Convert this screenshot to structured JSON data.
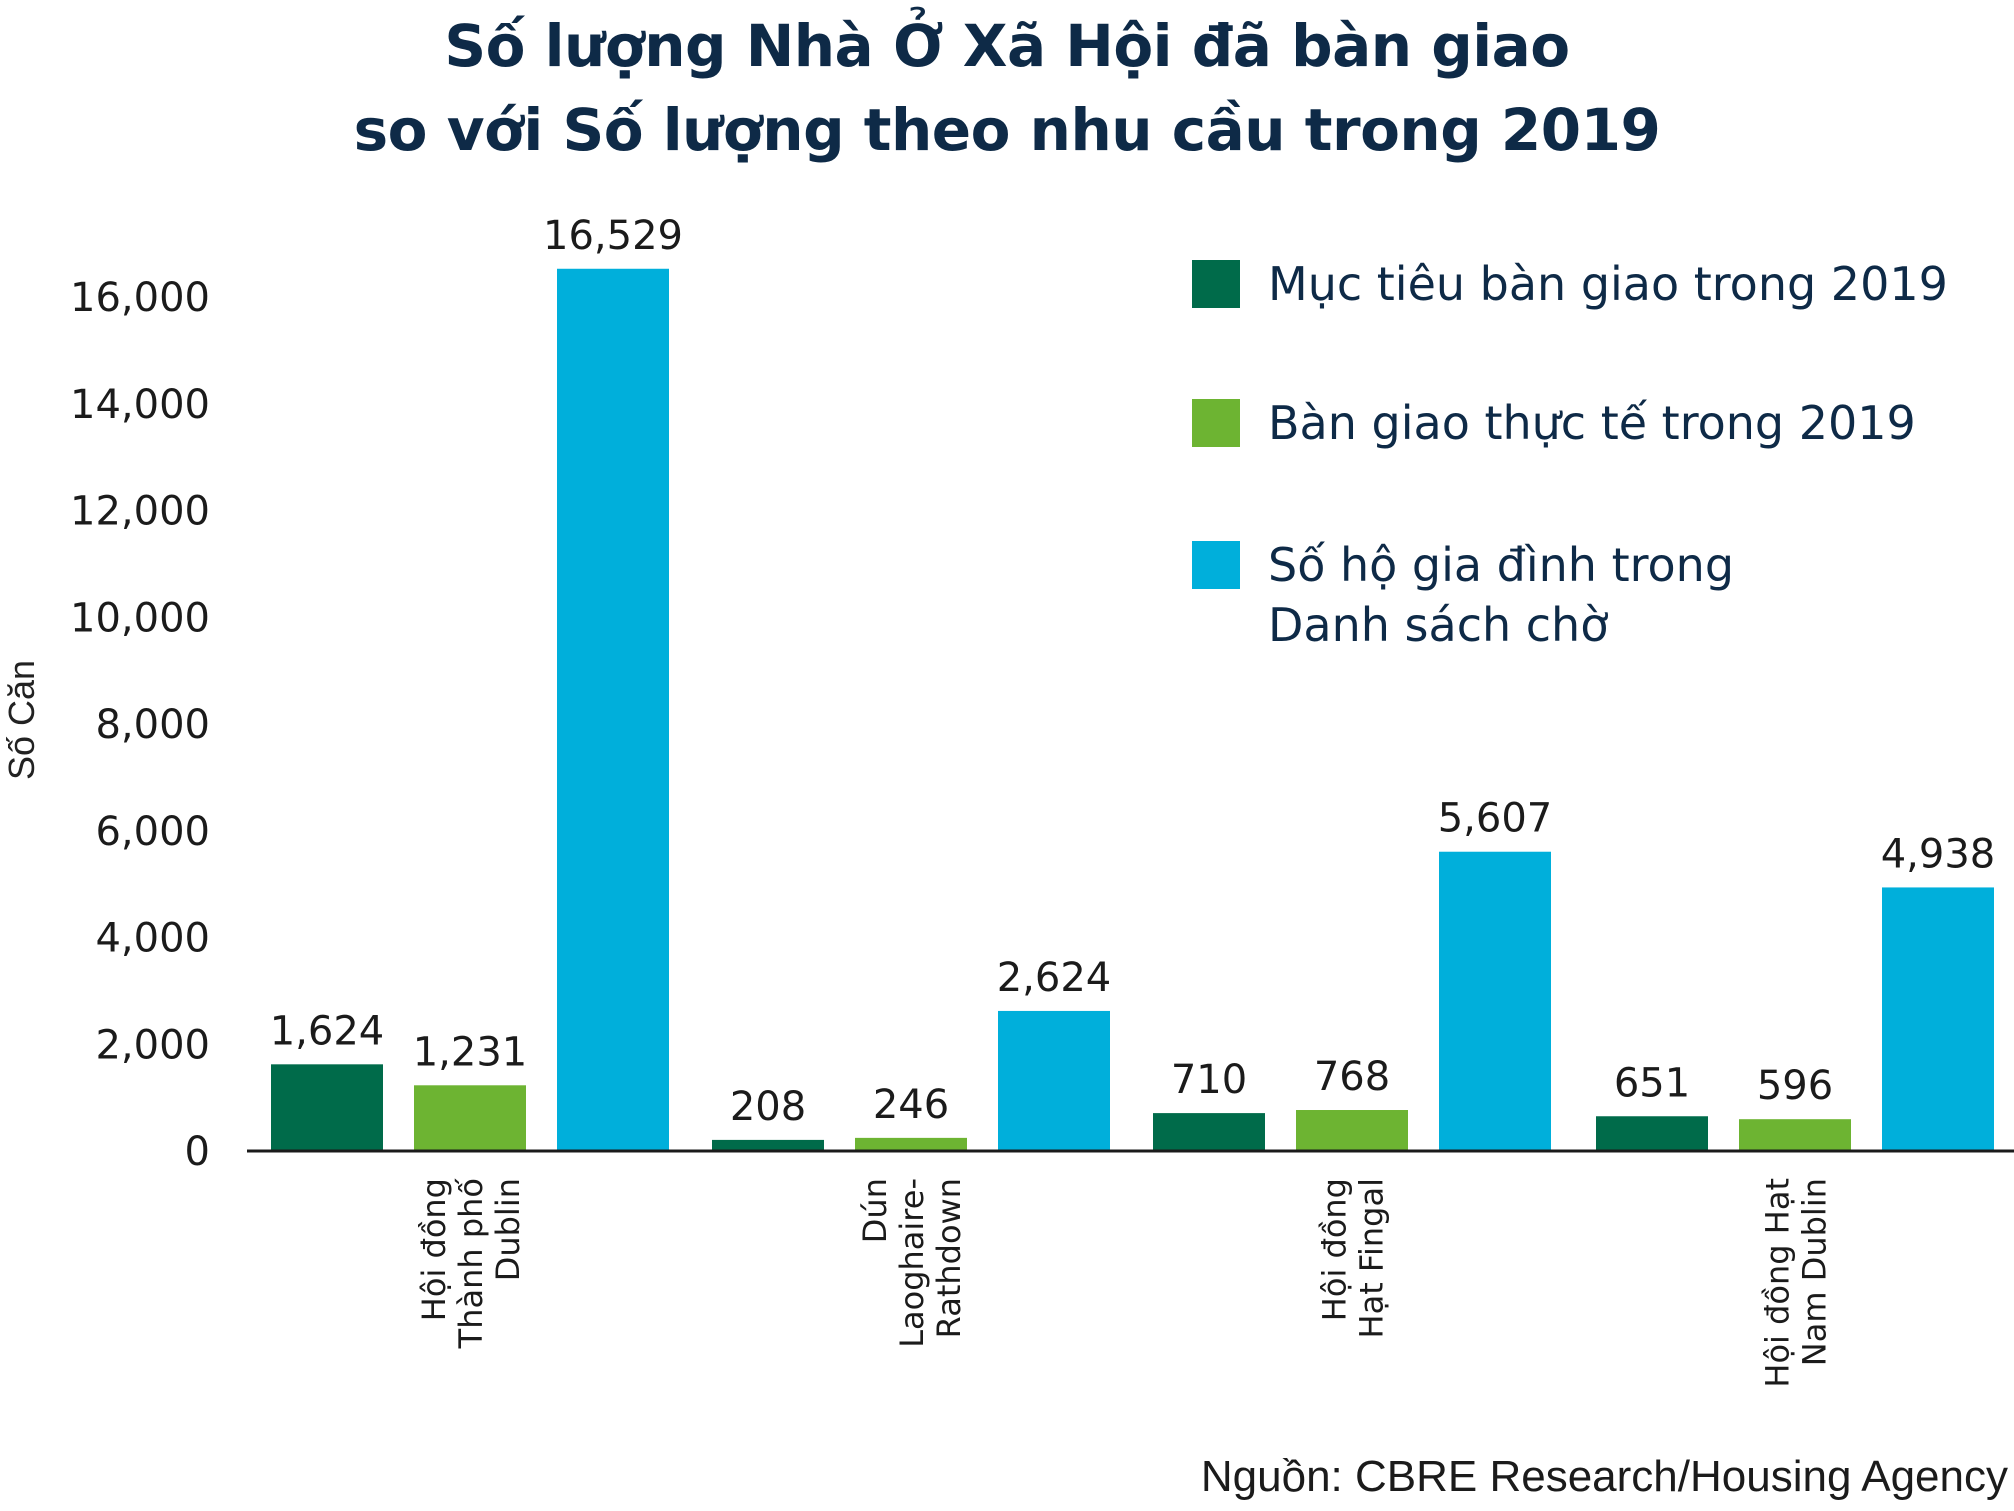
{
  "chart_data": {
    "type": "bar",
    "title_lines": [
      "Số lượng Nhà Ở Xã Hội đã bàn giao",
      "so với Số lượng theo nhu cầu trong 2019"
    ],
    "xlabel": "",
    "ylabel": "Số Căn",
    "ylim": [
      0,
      16529
    ],
    "yticks": [
      0,
      2000,
      4000,
      6000,
      8000,
      10000,
      12000,
      14000,
      16000
    ],
    "ytick_labels": [
      "0",
      "2,000",
      "4,000",
      "6,000",
      "8,000",
      "10,000",
      "12,000",
      "14,000",
      "16,000"
    ],
    "grid": false,
    "legend_position": "top-right",
    "categories": [
      [
        "Hội đồng",
        "Thành phố",
        "Dublin"
      ],
      [
        "Dún",
        "Laoghaire-",
        "Rathdown"
      ],
      [
        "Hội đồng",
        "Hạt Fingal"
      ],
      [
        "Hội đồng Hạt",
        "Nam Dublin"
      ]
    ],
    "series": [
      {
        "name_lines": [
          "Mục tiêu bàn giao trong 2019"
        ],
        "color": "#006b4a",
        "values": [
          1624,
          208,
          710,
          651
        ],
        "labels": [
          "1,624",
          "208",
          "710",
          "651"
        ]
      },
      {
        "name_lines": [
          "Bàn giao thực tế trong 2019"
        ],
        "color": "#6db432",
        "values": [
          1231,
          246,
          768,
          596
        ],
        "labels": [
          "1,231",
          "246",
          "768",
          "596"
        ]
      },
      {
        "name_lines": [
          "Số hộ gia đình trong",
          "Danh sách chờ"
        ],
        "color": "#00afdb",
        "values": [
          16529,
          2624,
          5607,
          4938
        ],
        "labels": [
          "16,529",
          "2,624",
          "5,607",
          "4,938"
        ]
      }
    ]
  },
  "source": "Nguồn: CBRE Research/Housing Agency"
}
